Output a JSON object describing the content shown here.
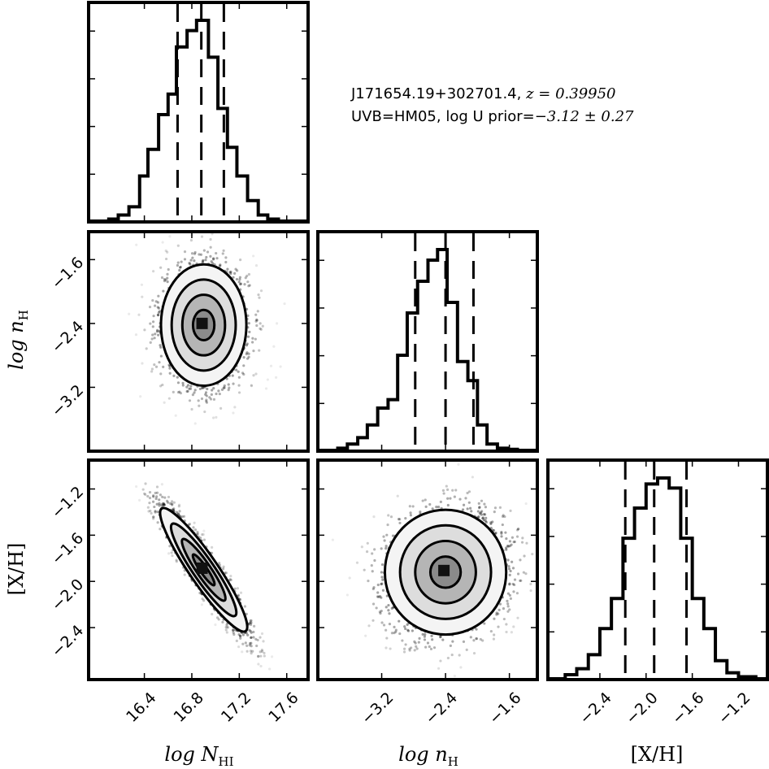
{
  "annotation": {
    "line1_prefix": "J171654.19+302701.4, ",
    "line1_math": "z = 0.39950",
    "line2_prefix": "UVB=HM05, log U prior=",
    "line2_math": "−3.12 ± 0.27"
  },
  "chart_data": {
    "type": "corner",
    "parameters": [
      {
        "key": "logNHI",
        "label": "log N_HI",
        "range": [
          15.93,
          17.78
        ],
        "ticks": [
          16.4,
          16.8,
          17.2,
          17.6
        ],
        "tick_labels": [
          "16.4",
          "16.8",
          "17.2",
          "17.6"
        ]
      },
      {
        "key": "lognH",
        "label": "log n_H",
        "range": [
          -4.0,
          -1.25
        ],
        "ticks": [
          -3.2,
          -2.4,
          -1.6
        ],
        "tick_labels": [
          "−3.2",
          "−2.4",
          "−1.6"
        ]
      },
      {
        "key": "XH",
        "label": "[X/H]",
        "range": [
          -2.85,
          -0.95
        ],
        "ticks": [
          -2.4,
          -2.0,
          -1.6,
          -1.2
        ],
        "tick_labels": [
          "−2.4",
          "−2.0",
          "−1.6",
          "−1.2"
        ]
      }
    ],
    "axis_titles": {
      "x": [
        "log N",
        "log n",
        "[X/H]"
      ],
      "x_sub": [
        "HI",
        "H",
        ""
      ],
      "y": [
        "log n",
        "[X/H]"
      ],
      "y_sub": [
        "H",
        ""
      ]
    },
    "histograms": [
      {
        "param": "logNHI",
        "bin_edges": [
          15.93,
          16.01,
          16.1,
          16.18,
          16.27,
          16.36,
          16.43,
          16.52,
          16.6,
          16.67,
          16.76,
          16.84,
          16.94,
          17.02,
          17.1,
          17.18,
          17.27,
          17.36,
          17.44,
          17.53,
          17.6,
          17.78
        ],
        "counts": [
          0,
          0,
          0.01,
          0.03,
          0.07,
          0.22,
          0.35,
          0.52,
          0.62,
          0.85,
          0.93,
          0.98,
          0.8,
          0.55,
          0.36,
          0.22,
          0.1,
          0.03,
          0.01,
          0,
          0
        ],
        "quantiles": [
          16.68,
          16.88,
          17.07
        ]
      },
      {
        "param": "lognH",
        "bin_edges": [
          -4.0,
          -3.75,
          -3.63,
          -3.5,
          -3.38,
          -3.25,
          -3.12,
          -3.0,
          -2.88,
          -2.75,
          -2.62,
          -2.5,
          -2.38,
          -2.25,
          -2.12,
          -2.0,
          -1.88,
          -1.75,
          -1.62,
          -1.5,
          -1.25
        ],
        "counts": [
          0,
          0.01,
          0.03,
          0.06,
          0.12,
          0.2,
          0.24,
          0.45,
          0.65,
          0.8,
          0.9,
          0.95,
          0.7,
          0.42,
          0.33,
          0.12,
          0.03,
          0.01,
          0.005,
          0
        ],
        "quantiles": [
          -2.78,
          -2.4,
          -2.05
        ]
      },
      {
        "param": "XH",
        "bin_edges": [
          -2.85,
          -2.7,
          -2.6,
          -2.5,
          -2.4,
          -2.3,
          -2.2,
          -2.1,
          -2.0,
          -1.9,
          -1.8,
          -1.7,
          -1.6,
          -1.5,
          -1.4,
          -1.3,
          -1.2,
          -1.05,
          -0.95
        ],
        "counts": [
          0,
          0.02,
          0.05,
          0.12,
          0.25,
          0.4,
          0.7,
          0.85,
          0.97,
          1.0,
          0.95,
          0.7,
          0.4,
          0.25,
          0.09,
          0.03,
          0.01,
          0
        ],
        "quantiles": [
          -2.18,
          -1.93,
          -1.65
        ]
      }
    ],
    "joint_panels": [
      {
        "x": "logNHI",
        "y": "lognH",
        "center": [
          16.9,
          -2.42
        ],
        "sigma": [
          0.18,
          0.38
        ],
        "correlation": 0.0
      },
      {
        "x": "logNHI",
        "y": "XH",
        "center": [
          16.9,
          -1.9
        ],
        "sigma": [
          0.18,
          0.27
        ],
        "correlation": -0.93
      },
      {
        "x": "lognH",
        "y": "XH",
        "center": [
          -2.4,
          -1.92
        ],
        "sigma": [
          0.38,
          0.27
        ],
        "correlation": 0.1
      }
    ],
    "grid": false,
    "legend": "none"
  }
}
